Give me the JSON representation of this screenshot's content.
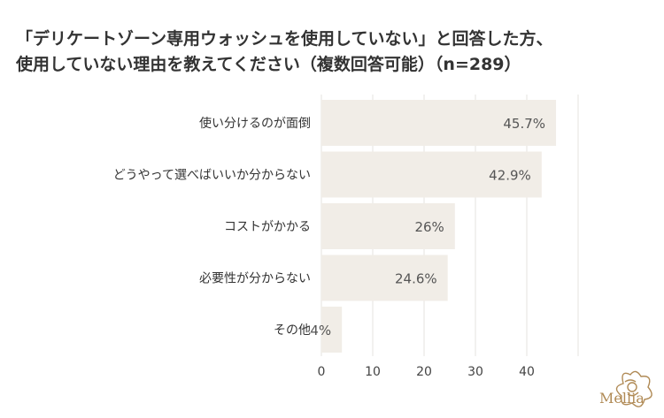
{
  "chart_data": {
    "type": "bar",
    "orientation": "horizontal",
    "title_lines": [
      "「デリケートゾーン専用ウォッシュを使用していない」と回答した方、",
      "使用していない理由を教えてください（複数回答可能）（n=289）"
    ],
    "categories": [
      "使い分けるのが面倒",
      "どうやって選べばいいか分からない",
      "コストがかかる",
      "必要性が分からない",
      "その他"
    ],
    "values": [
      45.7,
      42.9,
      26,
      24.6,
      4
    ],
    "value_labels": [
      "45.7%",
      "42.9%",
      "26%",
      "24.6%",
      "4%"
    ],
    "xlim": [
      0,
      50
    ],
    "xticks": [
      0,
      10,
      20,
      30,
      40
    ],
    "xtick_labels": [
      "0",
      "10",
      "20",
      "30",
      "40"
    ],
    "grid": "vertical",
    "bar_color": "#f1ede7",
    "grid_color": "#e6e3df"
  },
  "logo": {
    "text": "Mellia",
    "color": "#b08a55",
    "icon": "camellia-flower-icon"
  }
}
